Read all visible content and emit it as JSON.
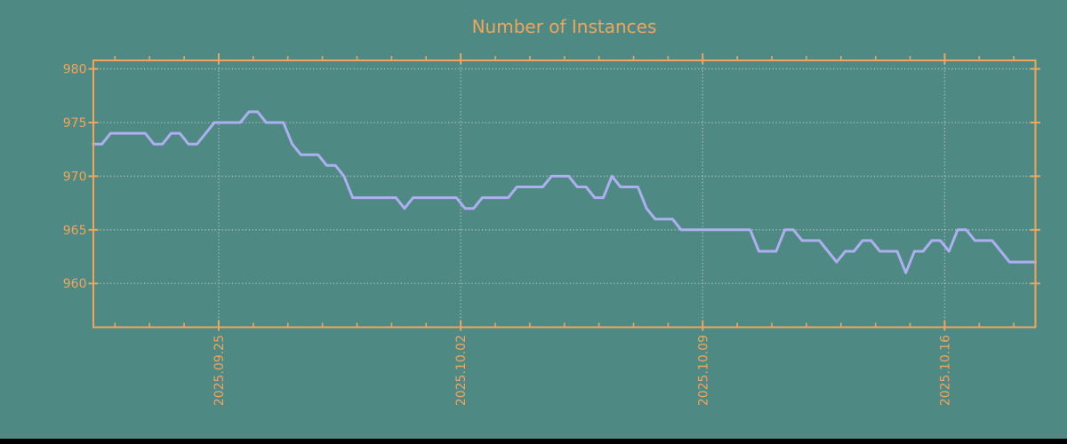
{
  "colors": {
    "background": "#4e8a83",
    "accent_orange": "#f0a45e",
    "line": "#adaff0",
    "grid": "#cbcbcb",
    "bottom_bar": "#000000"
  },
  "chart_data": {
    "type": "line",
    "title": "Number of Instances",
    "xlabel": "",
    "ylabel": "",
    "legend": false,
    "grid": true,
    "ylim": [
      956,
      981
    ],
    "y_ticks": [
      980,
      975,
      970,
      965,
      960
    ],
    "y_tick_labels": [
      "980",
      "975",
      "970",
      "965",
      "960"
    ],
    "x_tick_labels": [
      "2025.09.25",
      "2025.10.02",
      "2025.10.09",
      "2025.10.16"
    ],
    "x_minor_ticks": "daily",
    "x_tick_rotation_degrees": 90,
    "x": [
      "2025-09-21 09:00",
      "2025-09-21 15:00",
      "2025-09-21 21:00",
      "2025-09-22 03:00",
      "2025-09-22 09:00",
      "2025-09-22 15:00",
      "2025-09-22 21:00",
      "2025-09-23 03:00",
      "2025-09-23 09:00",
      "2025-09-23 15:00",
      "2025-09-23 21:00",
      "2025-09-24 03:00",
      "2025-09-24 09:00",
      "2025-09-24 15:00",
      "2025-09-24 21:00",
      "2025-09-25 03:00",
      "2025-09-25 09:00",
      "2025-09-25 15:00",
      "2025-09-25 21:00",
      "2025-09-26 03:00",
      "2025-09-26 09:00",
      "2025-09-26 15:00",
      "2025-09-26 21:00",
      "2025-09-27 03:00",
      "2025-09-27 09:00",
      "2025-09-27 15:00",
      "2025-09-27 21:00",
      "2025-09-28 03:00",
      "2025-09-28 09:00",
      "2025-09-28 15:00",
      "2025-09-28 21:00",
      "2025-09-29 03:00",
      "2025-09-29 09:00",
      "2025-09-29 15:00",
      "2025-09-29 21:00",
      "2025-09-30 03:00",
      "2025-09-30 09:00",
      "2025-09-30 15:00",
      "2025-09-30 21:00",
      "2025-10-01 03:00",
      "2025-10-01 09:00",
      "2025-10-01 15:00",
      "2025-10-01 21:00",
      "2025-10-02 03:00",
      "2025-10-02 09:00",
      "2025-10-02 15:00",
      "2025-10-02 21:00",
      "2025-10-03 03:00",
      "2025-10-03 09:00",
      "2025-10-03 15:00",
      "2025-10-03 21:00",
      "2025-10-04 03:00",
      "2025-10-04 09:00",
      "2025-10-04 15:00",
      "2025-10-04 21:00",
      "2025-10-05 03:00",
      "2025-10-05 09:00",
      "2025-10-05 15:00",
      "2025-10-05 21:00",
      "2025-10-06 03:00",
      "2025-10-06 09:00",
      "2025-10-06 15:00",
      "2025-10-06 21:00",
      "2025-10-07 03:00",
      "2025-10-07 09:00",
      "2025-10-07 15:00",
      "2025-10-07 21:00",
      "2025-10-08 03:00",
      "2025-10-08 09:00",
      "2025-10-08 15:00",
      "2025-10-08 21:00",
      "2025-10-09 03:00",
      "2025-10-09 09:00",
      "2025-10-09 15:00",
      "2025-10-09 21:00",
      "2025-10-10 03:00",
      "2025-10-10 09:00",
      "2025-10-10 15:00",
      "2025-10-10 21:00",
      "2025-10-11 03:00",
      "2025-10-11 09:00",
      "2025-10-11 15:00",
      "2025-10-11 21:00",
      "2025-10-12 03:00",
      "2025-10-12 09:00",
      "2025-10-12 15:00",
      "2025-10-12 21:00",
      "2025-10-13 03:00",
      "2025-10-13 09:00",
      "2025-10-13 15:00",
      "2025-10-13 21:00",
      "2025-10-14 03:00",
      "2025-10-14 09:00",
      "2025-10-14 15:00",
      "2025-10-14 21:00",
      "2025-10-15 03:00",
      "2025-10-15 09:00",
      "2025-10-15 15:00",
      "2025-10-15 21:00",
      "2025-10-16 03:00",
      "2025-10-16 09:00",
      "2025-10-16 15:00",
      "2025-10-16 21:00",
      "2025-10-17 03:00",
      "2025-10-17 09:00",
      "2025-10-17 15:00",
      "2025-10-17 21:00",
      "2025-10-18 03:00",
      "2025-10-18 09:00",
      "2025-10-18 15:00"
    ],
    "y": [
      973,
      973,
      974,
      974,
      974,
      974,
      974,
      973,
      973,
      974,
      974,
      973,
      973,
      974,
      975,
      975,
      975,
      975,
      976,
      976,
      975,
      975,
      975,
      973,
      972,
      972,
      972,
      971,
      971,
      970,
      968,
      968,
      968,
      968,
      968,
      968,
      967,
      968,
      968,
      968,
      968,
      968,
      968,
      967,
      967,
      968,
      968,
      968,
      968,
      969,
      969,
      969,
      969,
      970,
      970,
      970,
      969,
      969,
      968,
      968,
      970,
      969,
      969,
      969,
      967,
      966,
      966,
      966,
      965,
      965,
      965,
      965,
      965,
      965,
      965,
      965,
      965,
      963,
      963,
      963,
      965,
      965,
      964,
      964,
      964,
      963,
      962,
      963,
      963,
      964,
      964,
      963,
      963,
      963,
      961,
      963,
      963,
      964,
      964,
      963,
      965,
      965,
      964,
      964,
      964,
      963,
      962,
      962,
      962,
      962
    ]
  }
}
